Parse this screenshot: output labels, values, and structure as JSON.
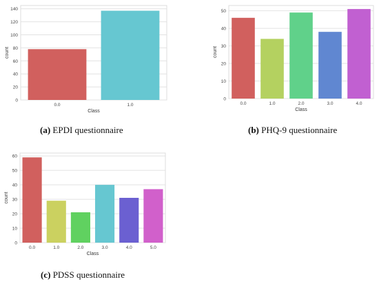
{
  "chart_data": [
    {
      "type": "bar",
      "panel": "a",
      "categories": [
        "0.0",
        "1.0"
      ],
      "values": [
        78,
        137
      ],
      "colors": [
        "#d1605e",
        "#66c7d1"
      ],
      "xlabel": "Class",
      "ylabel": "count",
      "ylim": [
        0,
        145
      ],
      "yticks": [
        0,
        20,
        40,
        60,
        80,
        100,
        120,
        140
      ],
      "grid": true,
      "caption_label": "(a)",
      "caption_text": "EPDI questionnaire"
    },
    {
      "type": "bar",
      "panel": "b",
      "categories": [
        "0.0",
        "1.0",
        "2.0",
        "3.0",
        "4.0"
      ],
      "values": [
        46,
        34,
        49,
        38,
        51
      ],
      "colors": [
        "#d1605e",
        "#b4d160",
        "#60d18a",
        "#6087d1",
        "#c160d1"
      ],
      "xlabel": "Class",
      "ylabel": "count",
      "ylim": [
        0,
        53
      ],
      "yticks": [
        0,
        10,
        20,
        30,
        40,
        50
      ],
      "grid": true,
      "caption_label": "(b)",
      "caption_text": "PHQ-9 questionnaire"
    },
    {
      "type": "bar",
      "panel": "c",
      "categories": [
        "0.0",
        "1.0",
        "2.0",
        "3.0",
        "4.0",
        "5.0"
      ],
      "values": [
        59,
        29,
        21,
        40,
        31,
        37
      ],
      "colors": [
        "#d1605e",
        "#cbd160",
        "#60d160",
        "#66c7d1",
        "#6b60d1",
        "#d160cb"
      ],
      "xlabel": "Class",
      "ylabel": "count",
      "ylim": [
        0,
        62
      ],
      "yticks": [
        0,
        10,
        20,
        30,
        40,
        50,
        60
      ],
      "grid": true,
      "caption_label": "(c)",
      "caption_text": "PDSS questionnaire"
    }
  ]
}
